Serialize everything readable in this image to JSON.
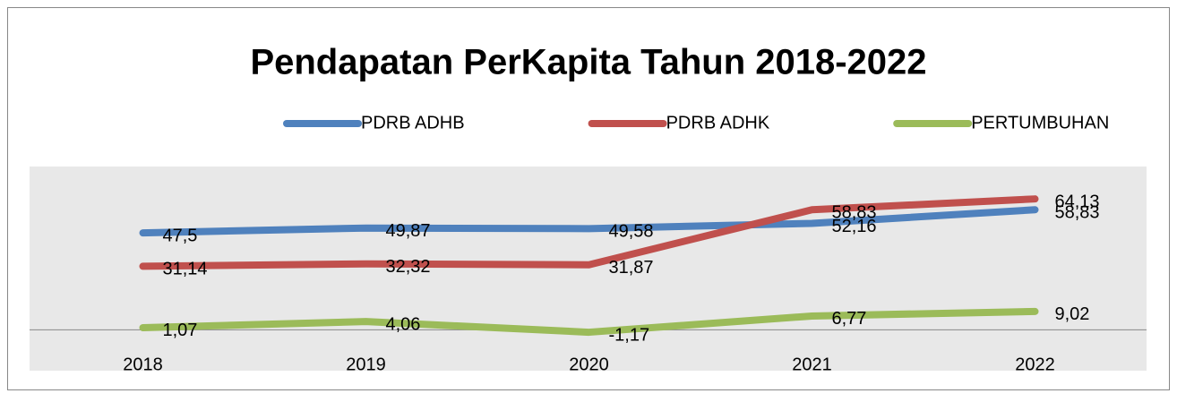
{
  "chart_data": {
    "type": "line",
    "title": "Pendapatan PerKapita Tahun 2018-2022",
    "categories": [
      "2018",
      "2019",
      "2020",
      "2021",
      "2022"
    ],
    "series": [
      {
        "name": "PDRB ADHB",
        "color": "#4f81bd",
        "values": [
          47.5,
          49.87,
          49.58,
          52.16,
          58.83
        ],
        "value_labels": [
          "47,5",
          "49,87",
          "49,58",
          "52,16",
          "58,83"
        ]
      },
      {
        "name": "PDRB ADHK",
        "color": "#c0504d",
        "values": [
          31.14,
          32.32,
          31.87,
          58.83,
          64.13
        ],
        "value_labels": [
          "31,14",
          "32,32",
          "31,87",
          "58,83",
          "64,13"
        ]
      },
      {
        "name": "PERTUMBUHAN",
        "color": "#9bbb59",
        "values": [
          1.07,
          4.06,
          -1.17,
          6.77,
          9.02
        ],
        "value_labels": [
          "1,07",
          "4,06",
          "-1,17",
          "6,77",
          "9,02"
        ]
      }
    ],
    "ylim": [
      -20,
      80
    ],
    "legend": "top"
  }
}
